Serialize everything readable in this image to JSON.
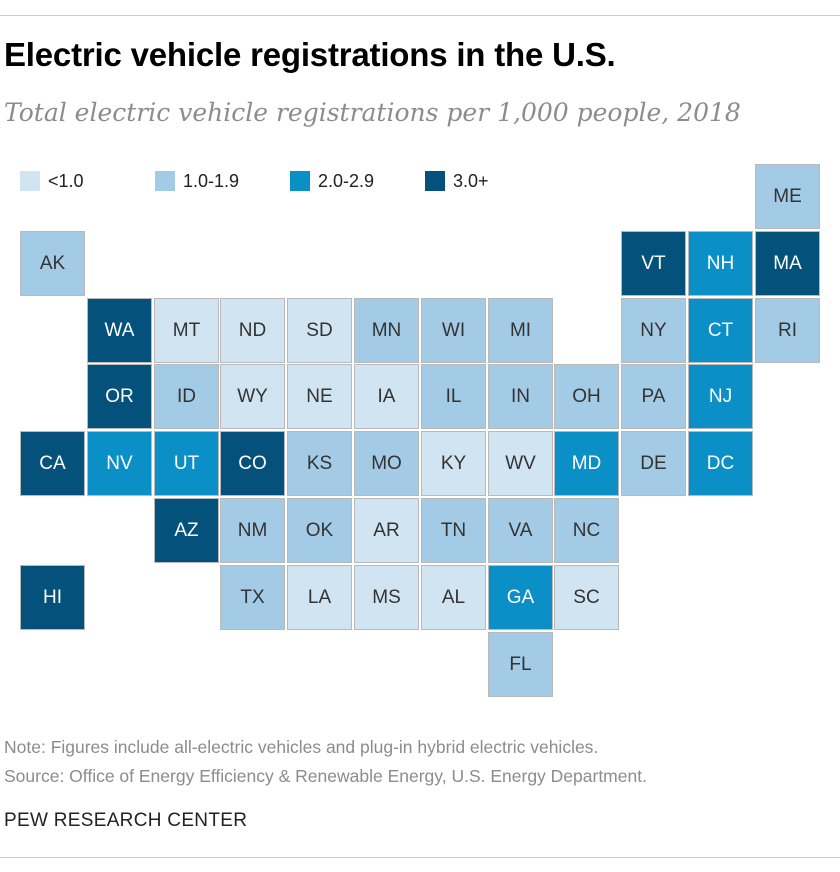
{
  "title": "Electric vehicle registrations in the U.S.",
  "subtitle": "Total electric vehicle registrations per 1,000 people, 2018",
  "note": "Note: Figures include all-electric vehicles and plug-in hybrid electric vehicles.",
  "source": "Source: Office of Energy Efficiency & Renewable Energy, U.S. Energy Department.",
  "brand": "PEW RESEARCH CENTER",
  "colors": {
    "c0": "#d1e4f2",
    "c1": "#a3cbe6",
    "c2": "#0b8fc7",
    "c3": "#04527c"
  },
  "legend": [
    {
      "label": "<1.0",
      "class": "c0"
    },
    {
      "label": "1.0-1.9",
      "class": "c1"
    },
    {
      "label": "2.0-2.9",
      "class": "c2"
    },
    {
      "label": "3.0+",
      "class": "c3"
    }
  ],
  "chart_data": {
    "type": "tile-map",
    "title": "Electric vehicle registrations in the U.S.",
    "subtitle": "Total electric vehicle registrations per 1,000 people, 2018",
    "unit": "registrations per 1,000 people",
    "bins": [
      "<1.0",
      "1.0-1.9",
      "2.0-2.9",
      "3.0+"
    ],
    "states": [
      {
        "abbr": "ME",
        "bin": "1.0-1.9",
        "row": 0,
        "col": 11
      },
      {
        "abbr": "AK",
        "bin": "1.0-1.9",
        "row": 1,
        "col": 0
      },
      {
        "abbr": "VT",
        "bin": "3.0+",
        "row": 1,
        "col": 9
      },
      {
        "abbr": "NH",
        "bin": "2.0-2.9",
        "row": 1,
        "col": 10
      },
      {
        "abbr": "MA",
        "bin": "3.0+",
        "row": 1,
        "col": 11
      },
      {
        "abbr": "WA",
        "bin": "3.0+",
        "row": 2,
        "col": 1
      },
      {
        "abbr": "MT",
        "bin": "<1.0",
        "row": 2,
        "col": 2
      },
      {
        "abbr": "ND",
        "bin": "<1.0",
        "row": 2,
        "col": 3
      },
      {
        "abbr": "SD",
        "bin": "<1.0",
        "row": 2,
        "col": 4
      },
      {
        "abbr": "MN",
        "bin": "1.0-1.9",
        "row": 2,
        "col": 5
      },
      {
        "abbr": "WI",
        "bin": "1.0-1.9",
        "row": 2,
        "col": 6
      },
      {
        "abbr": "MI",
        "bin": "1.0-1.9",
        "row": 2,
        "col": 7
      },
      {
        "abbr": "NY",
        "bin": "1.0-1.9",
        "row": 2,
        "col": 9
      },
      {
        "abbr": "CT",
        "bin": "2.0-2.9",
        "row": 2,
        "col": 10
      },
      {
        "abbr": "RI",
        "bin": "1.0-1.9",
        "row": 2,
        "col": 11
      },
      {
        "abbr": "OR",
        "bin": "3.0+",
        "row": 3,
        "col": 1
      },
      {
        "abbr": "ID",
        "bin": "1.0-1.9",
        "row": 3,
        "col": 2
      },
      {
        "abbr": "WY",
        "bin": "<1.0",
        "row": 3,
        "col": 3
      },
      {
        "abbr": "NE",
        "bin": "<1.0",
        "row": 3,
        "col": 4
      },
      {
        "abbr": "IA",
        "bin": "<1.0",
        "row": 3,
        "col": 5
      },
      {
        "abbr": "IL",
        "bin": "1.0-1.9",
        "row": 3,
        "col": 6
      },
      {
        "abbr": "IN",
        "bin": "1.0-1.9",
        "row": 3,
        "col": 7
      },
      {
        "abbr": "OH",
        "bin": "1.0-1.9",
        "row": 3,
        "col": 8
      },
      {
        "abbr": "PA",
        "bin": "1.0-1.9",
        "row": 3,
        "col": 9
      },
      {
        "abbr": "NJ",
        "bin": "2.0-2.9",
        "row": 3,
        "col": 10
      },
      {
        "abbr": "CA",
        "bin": "3.0+",
        "row": 4,
        "col": 0
      },
      {
        "abbr": "NV",
        "bin": "2.0-2.9",
        "row": 4,
        "col": 1
      },
      {
        "abbr": "UT",
        "bin": "2.0-2.9",
        "row": 4,
        "col": 2
      },
      {
        "abbr": "CO",
        "bin": "3.0+",
        "row": 4,
        "col": 3
      },
      {
        "abbr": "KS",
        "bin": "1.0-1.9",
        "row": 4,
        "col": 4
      },
      {
        "abbr": "MO",
        "bin": "1.0-1.9",
        "row": 4,
        "col": 5
      },
      {
        "abbr": "KY",
        "bin": "<1.0",
        "row": 4,
        "col": 6
      },
      {
        "abbr": "WV",
        "bin": "<1.0",
        "row": 4,
        "col": 7
      },
      {
        "abbr": "MD",
        "bin": "2.0-2.9",
        "row": 4,
        "col": 8
      },
      {
        "abbr": "DE",
        "bin": "1.0-1.9",
        "row": 4,
        "col": 9
      },
      {
        "abbr": "DC",
        "bin": "2.0-2.9",
        "row": 4,
        "col": 10
      },
      {
        "abbr": "AZ",
        "bin": "3.0+",
        "row": 5,
        "col": 2
      },
      {
        "abbr": "NM",
        "bin": "1.0-1.9",
        "row": 5,
        "col": 3
      },
      {
        "abbr": "OK",
        "bin": "1.0-1.9",
        "row": 5,
        "col": 4
      },
      {
        "abbr": "AR",
        "bin": "<1.0",
        "row": 5,
        "col": 5
      },
      {
        "abbr": "TN",
        "bin": "1.0-1.9",
        "row": 5,
        "col": 6
      },
      {
        "abbr": "VA",
        "bin": "1.0-1.9",
        "row": 5,
        "col": 7
      },
      {
        "abbr": "NC",
        "bin": "1.0-1.9",
        "row": 5,
        "col": 8
      },
      {
        "abbr": "HI",
        "bin": "3.0+",
        "row": 6,
        "col": 0
      },
      {
        "abbr": "TX",
        "bin": "1.0-1.9",
        "row": 6,
        "col": 3
      },
      {
        "abbr": "LA",
        "bin": "<1.0",
        "row": 6,
        "col": 4
      },
      {
        "abbr": "MS",
        "bin": "<1.0",
        "row": 6,
        "col": 5
      },
      {
        "abbr": "AL",
        "bin": "<1.0",
        "row": 6,
        "col": 6
      },
      {
        "abbr": "GA",
        "bin": "2.0-2.9",
        "row": 6,
        "col": 7
      },
      {
        "abbr": "SC",
        "bin": "<1.0",
        "row": 6,
        "col": 8
      },
      {
        "abbr": "FL",
        "bin": "1.0-1.9",
        "row": 7,
        "col": 7
      }
    ]
  }
}
